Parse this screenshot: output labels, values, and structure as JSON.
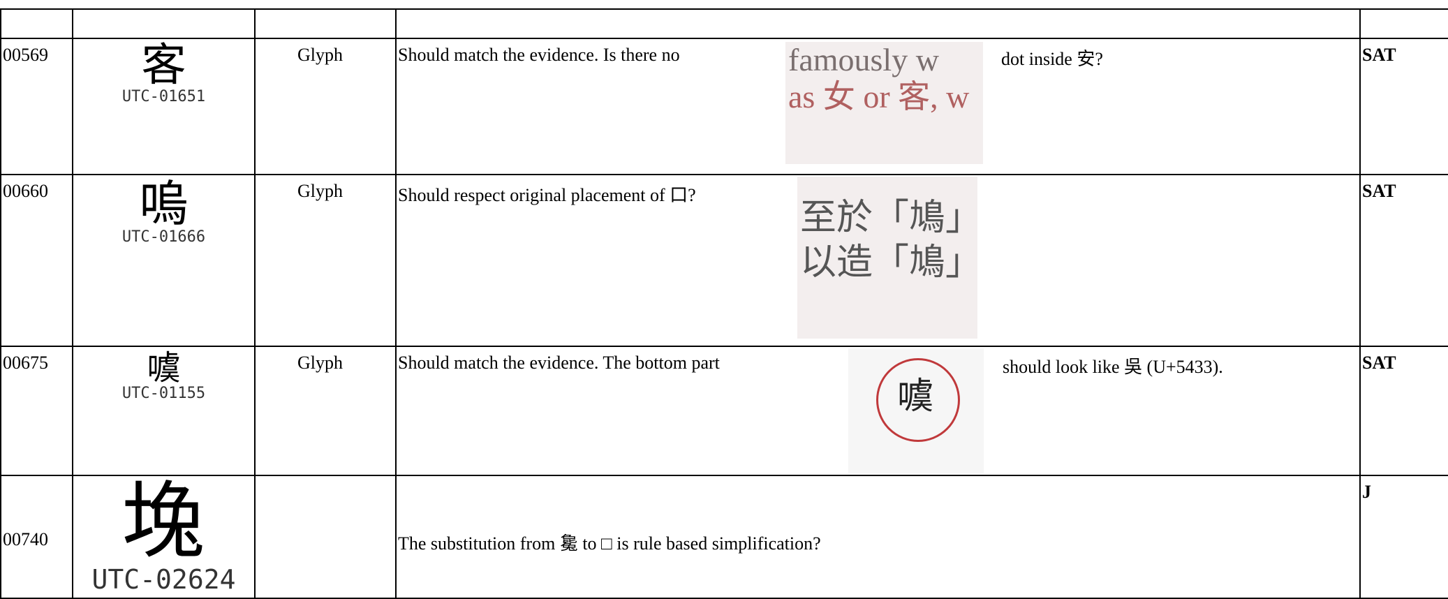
{
  "rows": [
    {
      "id": "00569",
      "glyph": "客",
      "code": "UTC-01651",
      "type": "Glyph",
      "comment": "Should match the evidence. Is there no",
      "evidence": [
        "famously w",
        "as 女 or 客, w"
      ],
      "comment_after": "dot inside 安?",
      "status": "SAT"
    },
    {
      "id": "00660",
      "glyph": "嗚",
      "code": "UTC-01666",
      "type": "Glyph",
      "comment": "Should respect original placement of 口?",
      "evidence": [
        "至於「鳩」",
        "以造「鳩」"
      ],
      "status": "SAT"
    },
    {
      "id": "00675",
      "glyph": "噳",
      "code": "UTC-01155",
      "type": "Glyph",
      "comment": "Should match the evidence. The bottom part",
      "evidence": [
        "噳"
      ],
      "comment_after": "should look like 吳 (U+5433).",
      "status": "SAT"
    },
    {
      "id": "00740",
      "glyph": "堍",
      "code": "UTC-02624",
      "comment": "The substitution from 毚 to □ is rule based simplification?",
      "status": "J"
    }
  ]
}
